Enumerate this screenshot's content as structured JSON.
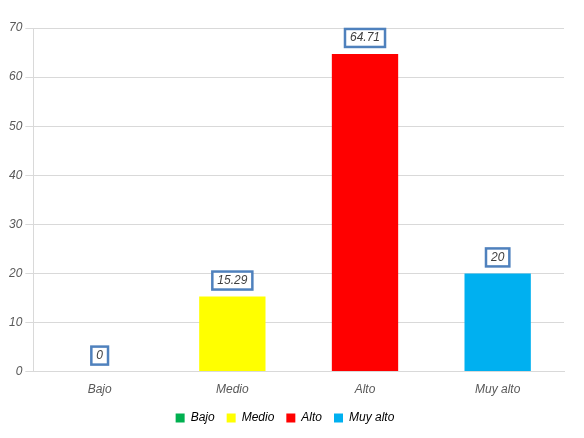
{
  "chart_data": {
    "type": "bar",
    "categories": [
      "Bajo",
      "Medio",
      "Alto",
      "Muy alto"
    ],
    "values": [
      0,
      15.29,
      64.71,
      20
    ],
    "colors": [
      "#00b050",
      "#ffff00",
      "#ff0000",
      "#00b0f0"
    ],
    "ylim": [
      0,
      70
    ],
    "yticks": [
      0,
      10,
      20,
      30,
      40,
      50,
      60,
      70
    ],
    "grid": true,
    "data_labels": true,
    "legend": "bottom"
  }
}
